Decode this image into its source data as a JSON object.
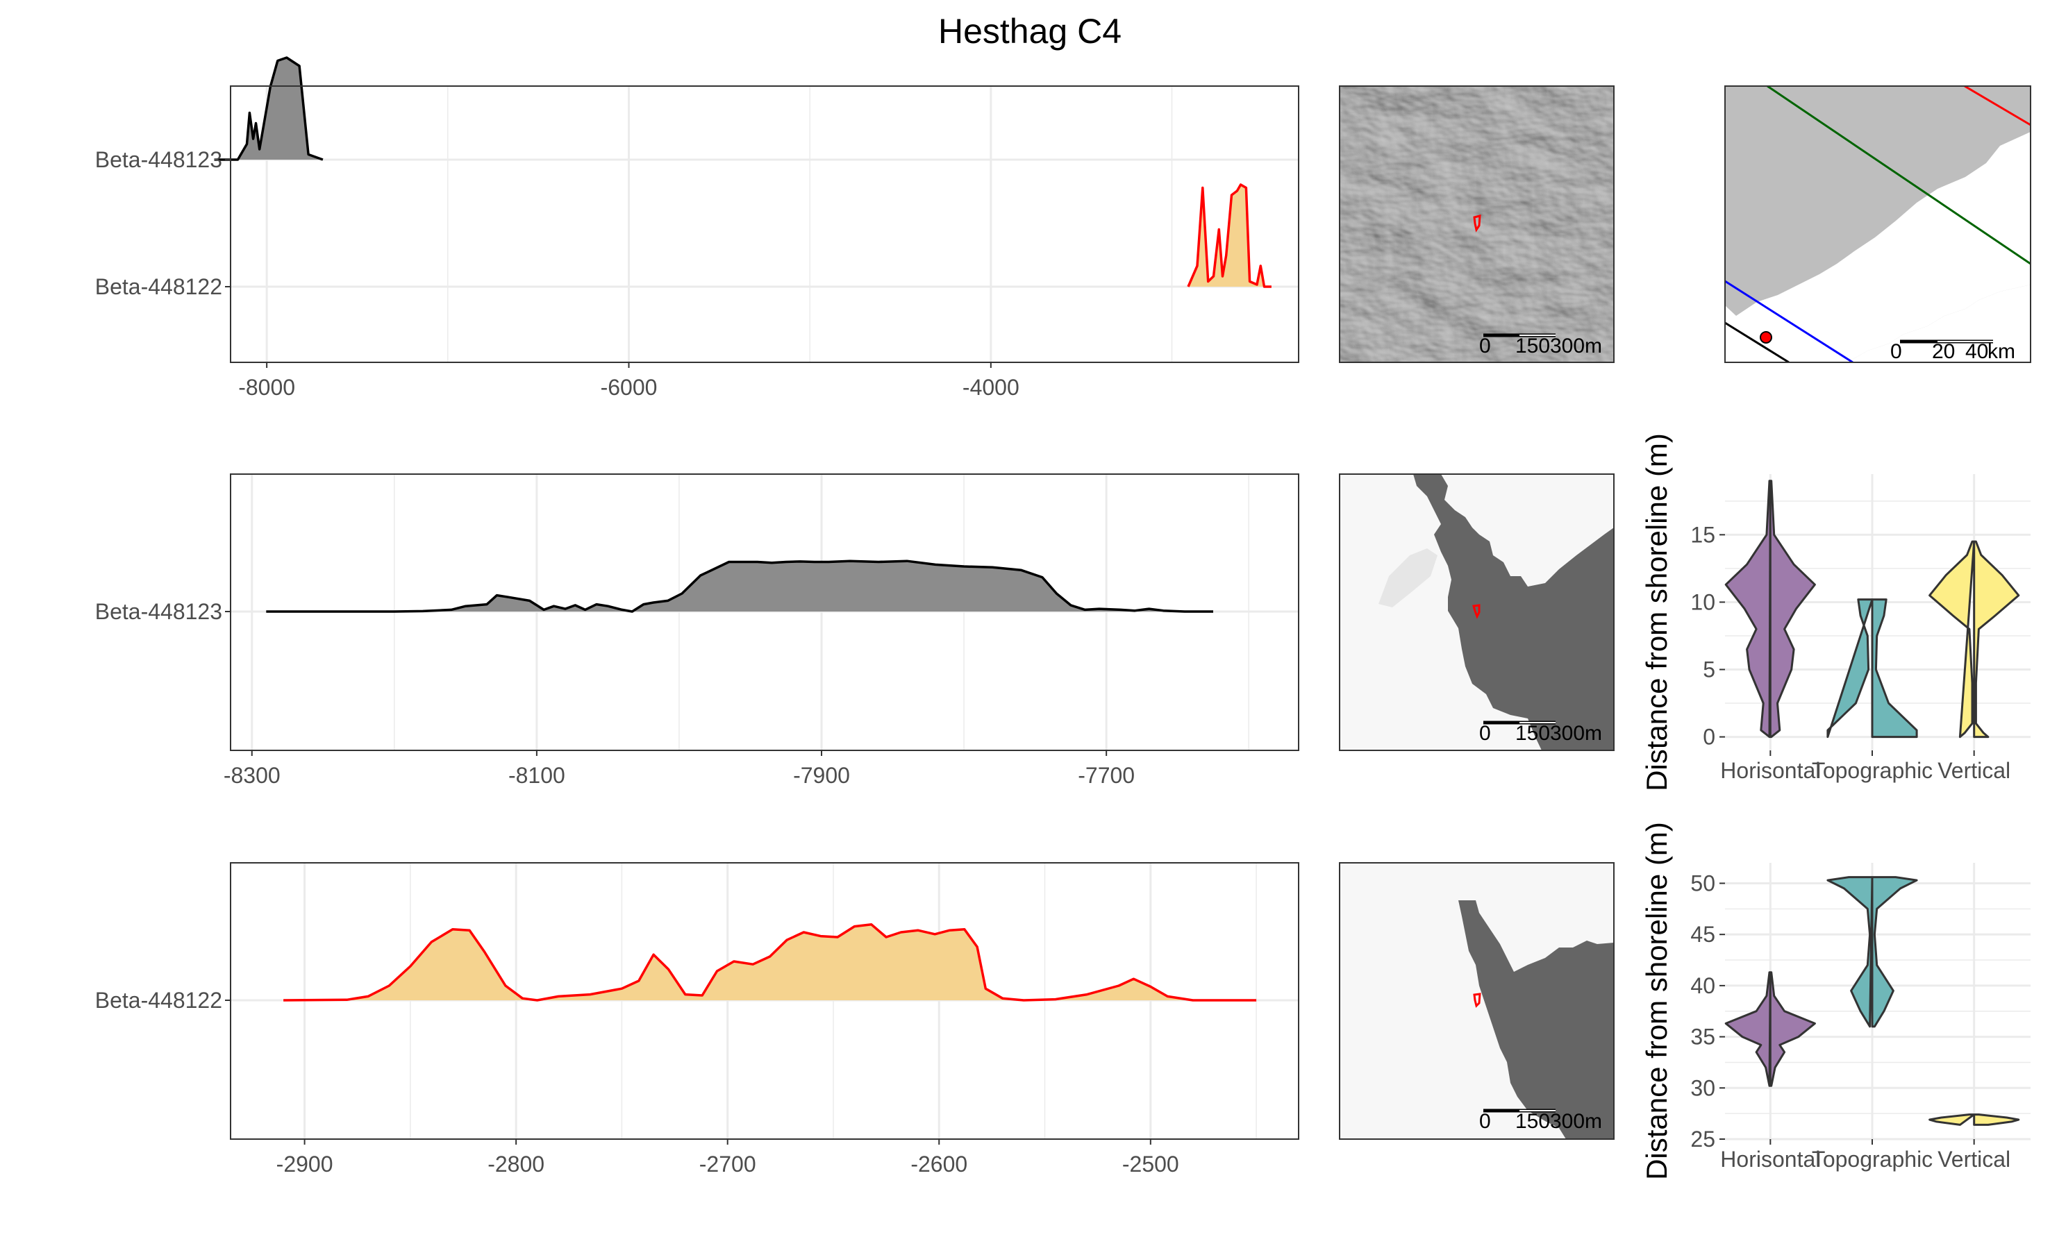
{
  "figure": {
    "title": "Hesthag C4"
  },
  "colors": {
    "beta_448123_fill": "#8c8c8c",
    "beta_448123_line": "#000000",
    "beta_448122_fill": "#f5d38f",
    "beta_448122_line": "#ff0000",
    "horisontal": "#9e7bab",
    "topographic": "#6fb7b8",
    "vertical": "#fdee87",
    "grid": "#ebebeb",
    "panel_border": "#333333",
    "sea_gray": "#bebebe",
    "land_dark": "#656565"
  },
  "icons": {
    "site_marker": "red-polygon-icon",
    "scale_bar": "scale-bar-icon"
  },
  "chart_data": [
    {
      "id": "overview-density",
      "type": "area",
      "x": {
        "range": [
          -8200,
          -2300
        ],
        "ticks": [
          -8000,
          -6000,
          -4000
        ]
      },
      "y_categories": [
        "Beta-448123",
        "Beta-448122"
      ],
      "series": [
        {
          "name": "Beta-448123",
          "x": [
            -8290,
            -8160,
            -8110,
            -8095,
            -8075,
            -8060,
            -8040,
            -7980,
            -7940,
            -7890,
            -7820,
            -7770,
            -7690
          ],
          "density": [
            0.0,
            0.0,
            0.15,
            0.45,
            0.2,
            0.35,
            0.1,
            0.7,
            0.95,
            0.98,
            0.9,
            0.05,
            0.0
          ]
        },
        {
          "name": "Beta-448122",
          "x": [
            -2910,
            -2860,
            -2830,
            -2800,
            -2770,
            -2740,
            -2720,
            -2700,
            -2670,
            -2640,
            -2620,
            -2590,
            -2570,
            -2530,
            -2510,
            -2490,
            -2450
          ],
          "density": [
            0.0,
            0.2,
            0.95,
            0.05,
            0.1,
            0.55,
            0.1,
            0.3,
            0.88,
            0.92,
            0.98,
            0.95,
            0.05,
            0.02,
            0.2,
            0.0,
            0.0
          ]
        }
      ]
    },
    {
      "id": "beta-448123-density",
      "type": "area",
      "x": {
        "range": [
          -8315,
          -7565
        ],
        "ticks": [
          -8300,
          -8100,
          -7900,
          -7700
        ]
      },
      "y_categories": [
        "Beta-448123"
      ],
      "series": [
        {
          "name": "Beta-448123",
          "x": [
            -8290,
            -8200,
            -8180,
            -8160,
            -8150,
            -8135,
            -8128,
            -8120,
            -8105,
            -8095,
            -8088,
            -8080,
            -8073,
            -8066,
            -8058,
            -8050,
            -8040,
            -8033,
            -8025,
            -8018,
            -8008,
            -7998,
            -7985,
            -7965,
            -7945,
            -7935,
            -7925,
            -7915,
            -7905,
            -7895,
            -7880,
            -7860,
            -7840,
            -7820,
            -7800,
            -7780,
            -7760,
            -7745,
            -7735,
            -7725,
            -7715,
            -7705,
            -7690,
            -7680,
            -7670,
            -7660,
            -7645,
            -7625
          ],
          "density": [
            0.0,
            0.0,
            0.005,
            0.02,
            0.06,
            0.08,
            0.18,
            0.16,
            0.12,
            0.02,
            0.06,
            0.03,
            0.07,
            0.02,
            0.08,
            0.06,
            0.02,
            0.0,
            0.08,
            0.1,
            0.12,
            0.2,
            0.4,
            0.55,
            0.55,
            0.54,
            0.55,
            0.555,
            0.55,
            0.55,
            0.56,
            0.55,
            0.56,
            0.52,
            0.5,
            0.49,
            0.46,
            0.38,
            0.2,
            0.07,
            0.02,
            0.03,
            0.02,
            0.01,
            0.03,
            0.01,
            0.0,
            0.0
          ]
        }
      ]
    },
    {
      "id": "beta-448122-density",
      "type": "area",
      "x": {
        "range": [
          -2935,
          -2430
        ],
        "ticks": [
          -2900,
          -2800,
          -2700,
          -2600,
          -2500
        ]
      },
      "y_categories": [
        "Beta-448122"
      ],
      "series": [
        {
          "name": "Beta-448122",
          "x": [
            -2910,
            -2880,
            -2870,
            -2860,
            -2850,
            -2840,
            -2830,
            -2822,
            -2815,
            -2805,
            -2797,
            -2790,
            -2780,
            -2765,
            -2750,
            -2742,
            -2735,
            -2728,
            -2720,
            -2712,
            -2705,
            -2697,
            -2688,
            -2680,
            -2672,
            -2664,
            -2656,
            -2648,
            -2640,
            -2632,
            -2625,
            -2618,
            -2610,
            -2602,
            -2595,
            -2588,
            -2582,
            -2578,
            -2570,
            -2560,
            -2545,
            -2530,
            -2515,
            -2508,
            -2500,
            -2492,
            -2480,
            -2465,
            -2450
          ],
          "density": [
            0.0,
            0.005,
            0.04,
            0.15,
            0.35,
            0.6,
            0.73,
            0.72,
            0.5,
            0.15,
            0.02,
            0.0,
            0.04,
            0.06,
            0.12,
            0.2,
            0.47,
            0.32,
            0.06,
            0.05,
            0.3,
            0.4,
            0.37,
            0.45,
            0.62,
            0.7,
            0.66,
            0.65,
            0.76,
            0.78,
            0.65,
            0.7,
            0.72,
            0.68,
            0.72,
            0.73,
            0.55,
            0.12,
            0.02,
            0.0,
            0.01,
            0.06,
            0.15,
            0.22,
            0.14,
            0.04,
            0.0,
            0.0,
            0.0
          ]
        }
      ]
    },
    {
      "id": "violin-distance-1",
      "type": "violin",
      "ylabel": "Distance from shoreline (m)",
      "y": {
        "range": [
          -1,
          19.5
        ],
        "ticks": [
          0,
          5,
          10,
          15
        ]
      },
      "categories": [
        "Horisontal",
        "Topographic",
        "Vertical"
      ],
      "violins": [
        {
          "name": "Horisontal",
          "y": [
            0,
            0.5,
            2.5,
            5,
            6.5,
            8,
            9.5,
            11.3,
            12.8,
            15,
            19
          ],
          "width": [
            0.02,
            0.2,
            0.15,
            0.45,
            0.5,
            0.3,
            0.55,
            0.95,
            0.5,
            0.08,
            0.02
          ]
        },
        {
          "name": "Topographic",
          "y": [
            0,
            0.5,
            2.5,
            5,
            7.5,
            9,
            10.2
          ],
          "width": [
            0.95,
            0.95,
            0.35,
            0.08,
            0.1,
            0.25,
            0.3
          ]
        },
        {
          "name": "Vertical",
          "y": [
            0,
            0.3,
            1,
            4,
            8,
            9,
            10.5,
            12,
            13.5,
            14.5
          ],
          "width": [
            0.3,
            0.2,
            0.04,
            0.04,
            0.1,
            0.45,
            0.95,
            0.6,
            0.15,
            0.04
          ]
        }
      ]
    },
    {
      "id": "violin-distance-2",
      "type": "violin",
      "ylabel": "Distance from shoreline (m)",
      "y": {
        "range": [
          25,
          52
        ],
        "ticks": [
          25,
          30,
          35,
          40,
          45,
          50
        ]
      },
      "categories": [
        "Horisontal",
        "Topographic",
        "Vertical"
      ],
      "violins": [
        {
          "name": "Horisontal",
          "y": [
            30.2,
            32,
            33.5,
            34.2,
            35,
            36.3,
            37.5,
            39,
            41.3
          ],
          "width": [
            0.02,
            0.1,
            0.3,
            0.2,
            0.6,
            0.95,
            0.3,
            0.08,
            0.02
          ]
        },
        {
          "name": "Topographic",
          "y": [
            36,
            37.5,
            39.5,
            42,
            45,
            47.5,
            49.5,
            50.3,
            50.6
          ],
          "width": [
            0.05,
            0.25,
            0.45,
            0.1,
            0.05,
            0.1,
            0.6,
            0.95,
            0.5
          ]
        },
        {
          "name": "Vertical",
          "y": [
            26.4,
            26.7,
            26.9,
            27.1,
            27.4
          ],
          "width": [
            0.3,
            0.8,
            0.95,
            0.7,
            0.1
          ]
        }
      ]
    }
  ],
  "maps": {
    "scale_hillshade_1": [
      "0",
      "150",
      "300",
      "m"
    ],
    "scale_region": [
      "0",
      "20",
      "40",
      "km"
    ],
    "scale_hillshade_2": [
      "0",
      "150",
      "300",
      "m"
    ],
    "scale_hillshade_3": [
      "0",
      "150",
      "300",
      "m"
    ]
  }
}
